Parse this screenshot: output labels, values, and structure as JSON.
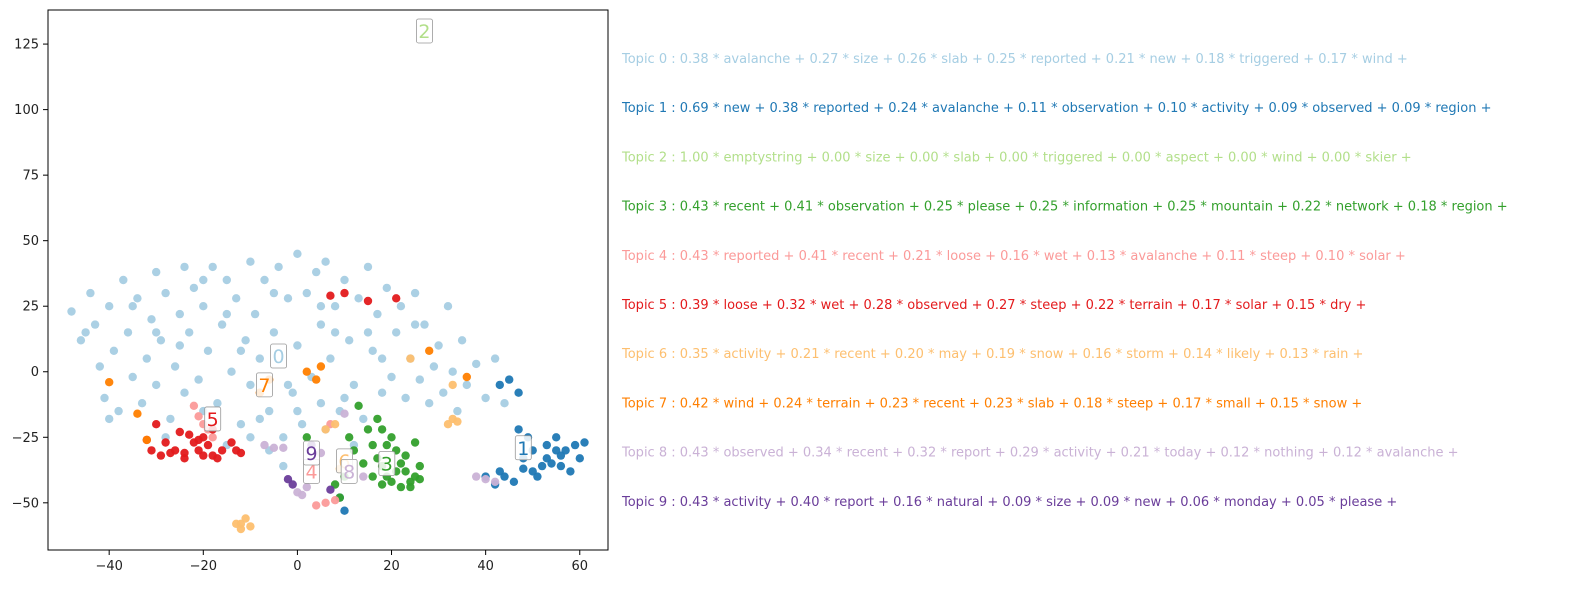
{
  "chart_data": {
    "type": "scatter",
    "title": "",
    "xlabel": "",
    "ylabel": "",
    "xlim": [
      -53,
      66
    ],
    "ylim": [
      -68,
      138
    ],
    "xticks": [
      -40,
      -20,
      0,
      20,
      40,
      60
    ],
    "yticks": [
      -50,
      -25,
      0,
      25,
      50,
      75,
      100,
      125
    ],
    "grid": false,
    "topic_colors": [
      "#a6cee3",
      "#1f78b4",
      "#b2df8a",
      "#33a02c",
      "#fb9a99",
      "#e31a1c",
      "#fdbf6f",
      "#ff7f00",
      "#cab2d6",
      "#6a3d9a"
    ],
    "cluster_labels": [
      {
        "label": "0",
        "topic": 0,
        "x": -4,
        "y": 6
      },
      {
        "label": "1",
        "topic": 1,
        "x": 48,
        "y": -29
      },
      {
        "label": "2",
        "topic": 2,
        "x": 27,
        "y": 130
      },
      {
        "label": "3",
        "topic": 3,
        "x": 19,
        "y": -35
      },
      {
        "label": "4",
        "topic": 4,
        "x": 3,
        "y": -38
      },
      {
        "label": "5",
        "topic": 5,
        "x": -18,
        "y": -18
      },
      {
        "label": "6",
        "topic": 6,
        "x": 10,
        "y": -34
      },
      {
        "label": "7",
        "topic": 7,
        "x": -7,
        "y": -5
      },
      {
        "label": "8",
        "topic": 8,
        "x": 11,
        "y": -38
      },
      {
        "label": "9",
        "topic": 9,
        "x": 3,
        "y": -31
      }
    ],
    "series": [
      {
        "topic": 0,
        "points": [
          [
            -48,
            23
          ],
          [
            -46,
            12
          ],
          [
            -44,
            30
          ],
          [
            -43,
            18
          ],
          [
            -42,
            2
          ],
          [
            -41,
            -10
          ],
          [
            -40,
            25
          ],
          [
            -39,
            8
          ],
          [
            -38,
            -15
          ],
          [
            -37,
            35
          ],
          [
            -36,
            15
          ],
          [
            -35,
            -2
          ],
          [
            -34,
            28
          ],
          [
            -33,
            -12
          ],
          [
            -32,
            5
          ],
          [
            -31,
            20
          ],
          [
            -30,
            38
          ],
          [
            -30,
            -5
          ],
          [
            -29,
            12
          ],
          [
            -28,
            30
          ],
          [
            -27,
            -18
          ],
          [
            -26,
            2
          ],
          [
            -25,
            22
          ],
          [
            -24,
            40
          ],
          [
            -24,
            -8
          ],
          [
            -23,
            15
          ],
          [
            -22,
            32
          ],
          [
            -21,
            -3
          ],
          [
            -20,
            25
          ],
          [
            -19,
            8
          ],
          [
            -18,
            40
          ],
          [
            -17,
            -12
          ],
          [
            -16,
            18
          ],
          [
            -15,
            35
          ],
          [
            -14,
            0
          ],
          [
            -13,
            28
          ],
          [
            -12,
            -20
          ],
          [
            -11,
            12
          ],
          [
            -10,
            42
          ],
          [
            -10,
            -5
          ],
          [
            -9,
            22
          ],
          [
            -8,
            5
          ],
          [
            -7,
            35
          ],
          [
            -6,
            -15
          ],
          [
            -5,
            15
          ],
          [
            -4,
            40
          ],
          [
            -3,
            -25
          ],
          [
            -2,
            28
          ],
          [
            -1,
            -8
          ],
          [
            0,
            45
          ],
          [
            0,
            10
          ],
          [
            1,
            -20
          ],
          [
            2,
            30
          ],
          [
            3,
            -2
          ],
          [
            4,
            38
          ],
          [
            5,
            18
          ],
          [
            5,
            -12
          ],
          [
            6,
            42
          ],
          [
            7,
            5
          ],
          [
            8,
            25
          ],
          [
            9,
            -15
          ],
          [
            10,
            35
          ],
          [
            11,
            12
          ],
          [
            12,
            -5
          ],
          [
            13,
            28
          ],
          [
            14,
            -18
          ],
          [
            15,
            40
          ],
          [
            16,
            8
          ],
          [
            17,
            22
          ],
          [
            18,
            -8
          ],
          [
            19,
            32
          ],
          [
            20,
            -2
          ],
          [
            21,
            15
          ],
          [
            22,
            25
          ],
          [
            23,
            -10
          ],
          [
            24,
            5
          ],
          [
            25,
            30
          ],
          [
            26,
            -3
          ],
          [
            27,
            18
          ],
          [
            28,
            -12
          ],
          [
            29,
            2
          ],
          [
            30,
            10
          ],
          [
            31,
            -8
          ],
          [
            32,
            25
          ],
          [
            33,
            0
          ],
          [
            34,
            -15
          ],
          [
            35,
            12
          ],
          [
            36,
            -5
          ],
          [
            38,
            3
          ],
          [
            40,
            -10
          ],
          [
            42,
            5
          ],
          [
            44,
            -12
          ],
          [
            -45,
            15
          ],
          [
            -35,
            25
          ],
          [
            -25,
            10
          ],
          [
            -15,
            22
          ],
          [
            -5,
            30
          ],
          [
            5,
            25
          ],
          [
            15,
            15
          ],
          [
            25,
            18
          ],
          [
            -20,
            -15
          ],
          [
            -10,
            -25
          ],
          [
            0,
            -15
          ],
          [
            10,
            -10
          ],
          [
            -30,
            15
          ],
          [
            -20,
            35
          ],
          [
            -12,
            8
          ],
          [
            -2,
            -5
          ],
          [
            8,
            15
          ],
          [
            18,
            5
          ],
          [
            -40,
            -18
          ],
          [
            -28,
            -25
          ],
          [
            -15,
            -28
          ],
          [
            -6,
            -30
          ],
          [
            -3,
            -36
          ],
          [
            6,
            -22
          ],
          [
            12,
            -28
          ],
          [
            -8,
            -18
          ],
          [
            3,
            -28
          ]
        ]
      },
      {
        "topic": 1,
        "points": [
          [
            47,
            -22
          ],
          [
            48,
            -33
          ],
          [
            49,
            -25
          ],
          [
            50,
            -30
          ],
          [
            51,
            -40
          ],
          [
            52,
            -36
          ],
          [
            53,
            -28
          ],
          [
            54,
            -35
          ],
          [
            55,
            -25
          ],
          [
            56,
            -32
          ],
          [
            57,
            -30
          ],
          [
            58,
            -38
          ],
          [
            59,
            -28
          ],
          [
            60,
            -33
          ],
          [
            61,
            -27
          ],
          [
            43,
            -38
          ],
          [
            44,
            -40
          ],
          [
            46,
            -42
          ],
          [
            48,
            -37
          ],
          [
            40,
            -40
          ],
          [
            42,
            -43
          ],
          [
            50,
            -38
          ],
          [
            53,
            -33
          ],
          [
            56,
            -36
          ],
          [
            45,
            -3
          ],
          [
            47,
            -8
          ],
          [
            43,
            -5
          ],
          [
            10,
            -53
          ],
          [
            9,
            -48
          ],
          [
            55,
            -30
          ]
        ]
      },
      {
        "topic": 2,
        "points": []
      },
      {
        "topic": 3,
        "points": [
          [
            13,
            -13
          ],
          [
            15,
            -22
          ],
          [
            16,
            -28
          ],
          [
            17,
            -33
          ],
          [
            18,
            -36
          ],
          [
            19,
            -40
          ],
          [
            20,
            -25
          ],
          [
            21,
            -30
          ],
          [
            22,
            -35
          ],
          [
            23,
            -38
          ],
          [
            24,
            -42
          ],
          [
            25,
            -40
          ],
          [
            26,
            -36
          ],
          [
            20,
            -42
          ],
          [
            22,
            -44
          ],
          [
            24,
            -44
          ],
          [
            21,
            -38
          ],
          [
            23,
            -32
          ],
          [
            19,
            -28
          ],
          [
            17,
            -18
          ],
          [
            18,
            -22
          ],
          [
            25,
            -27
          ],
          [
            12,
            -30
          ],
          [
            14,
            -35
          ],
          [
            10,
            -40
          ],
          [
            9,
            -48
          ],
          [
            8,
            -43
          ],
          [
            2,
            -25
          ],
          [
            11,
            -25
          ],
          [
            16,
            -40
          ],
          [
            18,
            -43
          ],
          [
            26,
            -41
          ]
        ]
      },
      {
        "topic": 4,
        "points": [
          [
            -22,
            -13
          ],
          [
            -21,
            -17
          ],
          [
            -20,
            -20
          ],
          [
            -19,
            -22
          ],
          [
            6,
            -50
          ],
          [
            4,
            -51
          ],
          [
            8,
            -49
          ],
          [
            7,
            -20
          ],
          [
            -18,
            -25
          ]
        ]
      },
      {
        "topic": 5,
        "points": [
          [
            -32,
            -26
          ],
          [
            -31,
            -30
          ],
          [
            -30,
            -20
          ],
          [
            -29,
            -32
          ],
          [
            -28,
            -27
          ],
          [
            -27,
            -31
          ],
          [
            -26,
            -30
          ],
          [
            -25,
            -23
          ],
          [
            -24,
            -31
          ],
          [
            -23,
            -24
          ],
          [
            -22,
            -27
          ],
          [
            -21,
            -30
          ],
          [
            -20,
            -25
          ],
          [
            -19,
            -28
          ],
          [
            -18,
            -32
          ],
          [
            -17,
            -33
          ],
          [
            -16,
            -30
          ],
          [
            -14,
            -27
          ],
          [
            -13,
            -30
          ],
          [
            -12,
            -31
          ],
          [
            -24,
            -33
          ],
          [
            -20,
            -32
          ],
          [
            7,
            29
          ],
          [
            10,
            30
          ],
          [
            15,
            27
          ],
          [
            21,
            28
          ],
          [
            -18,
            -22
          ],
          [
            -21,
            -26
          ]
        ]
      },
      {
        "topic": 6,
        "points": [
          [
            -12,
            -58
          ],
          [
            -11,
            -56
          ],
          [
            -10,
            -59
          ],
          [
            -13,
            -58
          ],
          [
            -12,
            -60
          ],
          [
            33,
            -18
          ],
          [
            34,
            -19
          ],
          [
            32,
            -20
          ],
          [
            8,
            -20
          ],
          [
            6,
            -22
          ],
          [
            24,
            5
          ],
          [
            33,
            -5
          ],
          [
            9,
            -37
          ]
        ]
      },
      {
        "topic": 7,
        "points": [
          [
            -40,
            -4
          ],
          [
            -34,
            -16
          ],
          [
            -8,
            -8
          ],
          [
            -6,
            -3
          ],
          [
            2,
            0
          ],
          [
            4,
            -3
          ],
          [
            5,
            2
          ],
          [
            28,
            8
          ],
          [
            36,
            -2
          ],
          [
            -32,
            -26
          ]
        ]
      },
      {
        "topic": 8,
        "points": [
          [
            38,
            -40
          ],
          [
            40,
            -41
          ],
          [
            42,
            -42
          ],
          [
            0,
            -46
          ],
          [
            1,
            -47
          ],
          [
            -3,
            -29
          ],
          [
            -5,
            -29
          ],
          [
            5,
            -31
          ],
          [
            10,
            -16
          ],
          [
            14,
            -40
          ],
          [
            2,
            -44
          ],
          [
            -7,
            -28
          ]
        ]
      },
      {
        "topic": 9,
        "points": [
          [
            -2,
            -41
          ],
          [
            -1,
            -43
          ],
          [
            3,
            -28
          ],
          [
            7,
            -45
          ]
        ]
      }
    ]
  },
  "topics": [
    {
      "text": "Topic 0 : 0.38 * avalanche + 0.27 * size + 0.26 * slab + 0.25 * reported + 0.21 * new + 0.18 * triggered + 0.17 * wind +",
      "color": "#a6cee3"
    },
    {
      "text": "Topic 1 : 0.69 * new + 0.38 * reported + 0.24 * avalanche + 0.11 * observation + 0.10 * activity + 0.09 * observed + 0.09 * region +",
      "color": "#1f78b4"
    },
    {
      "text": "Topic 2 : 1.00 * emptystring + 0.00 * size + 0.00 * slab + 0.00 * triggered + 0.00 * aspect + 0.00 * wind + 0.00 * skier +",
      "color": "#b2df8a"
    },
    {
      "text": "Topic 3 : 0.43 * recent + 0.41 * observation + 0.25 * please + 0.25 * information + 0.25 * mountain + 0.22 * network + 0.18 * region +",
      "color": "#33a02c"
    },
    {
      "text": "Topic 4 : 0.43 * reported + 0.41 * recent + 0.21 * loose + 0.16 * wet + 0.13 * avalanche + 0.11 * steep + 0.10 * solar +",
      "color": "#fb9a99"
    },
    {
      "text": "Topic 5 : 0.39 * loose + 0.32 * wet + 0.28 * observed + 0.27 * steep + 0.22 * terrain + 0.17 * solar + 0.15 * dry +",
      "color": "#e31a1c"
    },
    {
      "text": "Topic 6 : 0.35 * activity + 0.21 * recent + 0.20 * may + 0.19 * snow + 0.16 * storm + 0.14 * likely + 0.13 * rain +",
      "color": "#fdbf6f"
    },
    {
      "text": "Topic 7 : 0.42 * wind + 0.24 * terrain + 0.23 * recent + 0.23 * slab + 0.18 * steep + 0.17 * small + 0.15 * snow +",
      "color": "#ff7f00"
    },
    {
      "text": "Topic 8 : 0.43 * observed + 0.34 * recent + 0.32 * report + 0.29 * activity + 0.21 * today + 0.12 * nothing + 0.12 * avalanche +",
      "color": "#cab2d6"
    },
    {
      "text": "Topic 9 : 0.43 * activity + 0.40 * report + 0.16 * natural + 0.09 * size + 0.09 * new + 0.06 * monday + 0.05 * please +",
      "color": "#6a3d9a"
    }
  ]
}
